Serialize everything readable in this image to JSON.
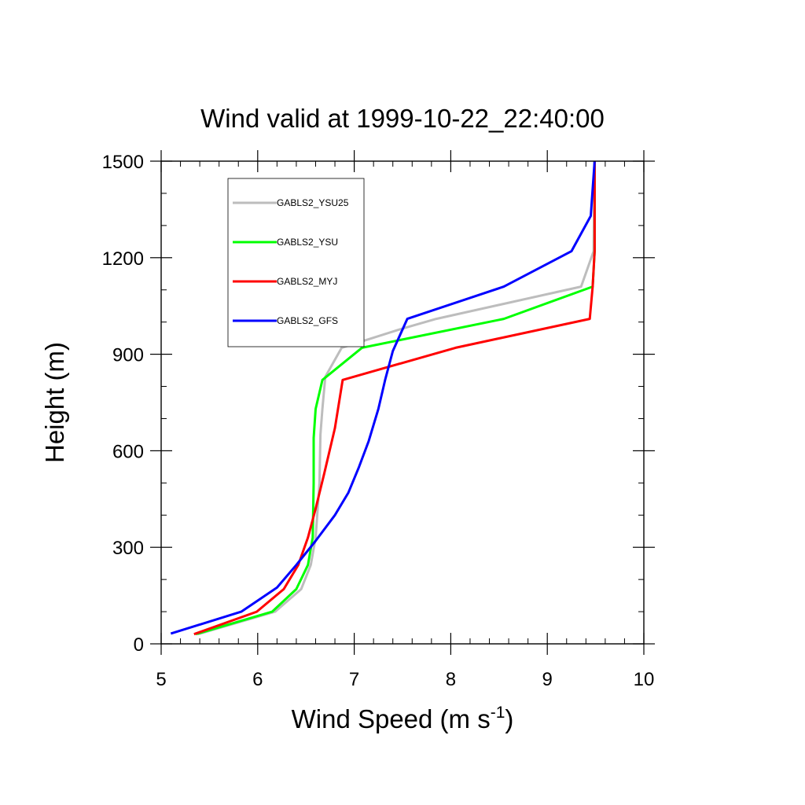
{
  "chart_data": {
    "type": "line",
    "title": "Wind valid at 1999-10-22_22:40:00",
    "xlabel": "Wind Speed (m s",
    "xlabel_sup": "-1",
    "xlabel_end": ")",
    "ylabel": "Height (m)",
    "xlim": [
      5,
      10
    ],
    "ylim": [
      0,
      1500
    ],
    "xticks": [
      5,
      6,
      7,
      8,
      9,
      10
    ],
    "yticks": [
      0,
      300,
      600,
      900,
      1200,
      1500
    ],
    "xtick_labels": [
      "5",
      "6",
      "7",
      "8",
      "9",
      "10"
    ],
    "ytick_labels": [
      "0",
      "300",
      "600",
      "900",
      "1200",
      "1500"
    ],
    "grid": false,
    "legend_position": "top-left",
    "series": [
      {
        "name": "GABLS2_YSU25",
        "color": "#bdbdbd",
        "points": [
          [
            5.38,
            30
          ],
          [
            6.18,
            100
          ],
          [
            6.45,
            170
          ],
          [
            6.55,
            245
          ],
          [
            6.6,
            330
          ],
          [
            6.64,
            500
          ],
          [
            6.65,
            650
          ],
          [
            6.67,
            730
          ],
          [
            6.7,
            830
          ],
          [
            6.87,
            920
          ],
          [
            7.5,
            980
          ],
          [
            7.85,
            1010
          ],
          [
            8.6,
            1060
          ],
          [
            9.35,
            1110
          ],
          [
            9.48,
            1220
          ],
          [
            9.49,
            1500
          ]
        ]
      },
      {
        "name": "GABLS2_YSU",
        "color": "#00ff00",
        "points": [
          [
            5.36,
            30
          ],
          [
            6.15,
            100
          ],
          [
            6.4,
            170
          ],
          [
            6.52,
            245
          ],
          [
            6.57,
            330
          ],
          [
            6.58,
            500
          ],
          [
            6.58,
            640
          ],
          [
            6.6,
            730
          ],
          [
            6.67,
            820
          ],
          [
            7.08,
            920
          ],
          [
            8.55,
            1010
          ],
          [
            9.47,
            1110
          ],
          [
            9.49,
            1220
          ],
          [
            9.49,
            1500
          ]
        ]
      },
      {
        "name": "GABLS2_MYJ",
        "color": "#ff0000",
        "points": [
          [
            5.34,
            30
          ],
          [
            5.99,
            100
          ],
          [
            6.27,
            170
          ],
          [
            6.42,
            245
          ],
          [
            6.52,
            330
          ],
          [
            6.6,
            420
          ],
          [
            6.69,
            530
          ],
          [
            6.8,
            670
          ],
          [
            6.88,
            820
          ],
          [
            8.05,
            920
          ],
          [
            9.44,
            1010
          ],
          [
            9.47,
            1110
          ],
          [
            9.49,
            1220
          ],
          [
            9.49,
            1500
          ]
        ]
      },
      {
        "name": "GABLS2_GFS",
        "color": "#0000ff",
        "points": [
          [
            5.1,
            32
          ],
          [
            5.83,
            100
          ],
          [
            6.2,
            175
          ],
          [
            6.4,
            245
          ],
          [
            6.6,
            320
          ],
          [
            6.8,
            400
          ],
          [
            6.94,
            470
          ],
          [
            7.05,
            550
          ],
          [
            7.15,
            630
          ],
          [
            7.25,
            730
          ],
          [
            7.32,
            820
          ],
          [
            7.4,
            910
          ],
          [
            7.55,
            1010
          ],
          [
            8.55,
            1110
          ],
          [
            9.25,
            1220
          ],
          [
            9.45,
            1330
          ],
          [
            9.49,
            1500
          ]
        ]
      }
    ]
  }
}
